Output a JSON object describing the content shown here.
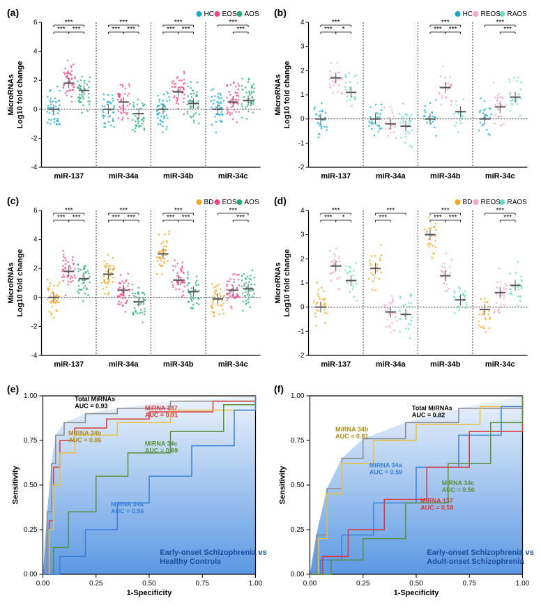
{
  "panels": {
    "a": {
      "label": "(a)",
      "yTitle": "MicroRNAs\nLog10 fold change",
      "yRange": [
        -4,
        6
      ],
      "yStep": 2,
      "categories": [
        "miR-137",
        "miR-34a",
        "miR-34b",
        "miR-34c"
      ],
      "legend": [
        {
          "label": "HC",
          "color": "#1ca9c9"
        },
        {
          "label": "EOS",
          "color": "#e94b8a"
        },
        {
          "label": "AOS",
          "color": "#2aa876"
        }
      ],
      "n": 110,
      "means": [
        [
          0.0,
          1.8,
          1.3
        ],
        [
          0.0,
          0.5,
          -0.3
        ],
        [
          0.0,
          1.2,
          0.4
        ],
        [
          0.0,
          0.5,
          0.6
        ]
      ],
      "spread": 1.4,
      "sig": [
        [
          "***",
          "***",
          "***"
        ],
        [
          "***",
          "***",
          "***"
        ],
        [
          "***",
          "***",
          "***"
        ],
        [
          "***",
          "",
          "***"
        ]
      ]
    },
    "b": {
      "label": "(b)",
      "yTitle": "MicroRNAs\nLog10 fold change",
      "yRange": [
        -2,
        4
      ],
      "yStep": 1,
      "categories": [
        "miR-137",
        "miR-34a",
        "miR-34b",
        "miR-34c"
      ],
      "legend": [
        {
          "label": "HC",
          "color": "#1ca9c9"
        },
        {
          "label": "REOS",
          "color": "#f3a6c5"
        },
        {
          "label": "RAOS",
          "color": "#6ed9c0"
        }
      ],
      "n": 60,
      "means": [
        [
          0.0,
          1.7,
          1.1
        ],
        [
          0.0,
          -0.2,
          -0.3
        ],
        [
          0.0,
          1.3,
          0.3
        ],
        [
          0.0,
          0.5,
          0.9
        ]
      ],
      "spread": 0.9,
      "sig": [
        [
          "***",
          "***",
          "*"
        ],
        [
          "",
          "",
          ""
        ],
        [
          "***",
          "***",
          "***"
        ],
        [
          "***",
          "",
          "***"
        ]
      ]
    },
    "c": {
      "label": "(c)",
      "yTitle": "MicroRNAs\nLog10 fold change",
      "yRange": [
        -4,
        6
      ],
      "yStep": 2,
      "categories": [
        "miR-137",
        "miR-34a",
        "miR-34b",
        "miR-34c"
      ],
      "legend": [
        {
          "label": "BD",
          "color": "#f5a623"
        },
        {
          "label": "EOS",
          "color": "#e94b8a"
        },
        {
          "label": "AOS",
          "color": "#2aa876"
        }
      ],
      "n": 110,
      "means": [
        [
          0.0,
          1.8,
          1.3
        ],
        [
          1.6,
          0.5,
          -0.3
        ],
        [
          3.0,
          1.2,
          0.4
        ],
        [
          -0.1,
          0.5,
          0.6
        ]
      ],
      "spread": 1.4,
      "sig": [
        [
          "***",
          "***",
          "***"
        ],
        [
          "***",
          "***",
          "***"
        ],
        [
          "***",
          "***",
          "***"
        ],
        [
          "***",
          "",
          "***"
        ]
      ]
    },
    "d": {
      "label": "(d)",
      "yTitle": "MicroRNAs\nLog10 fold change",
      "yRange": [
        -2,
        4
      ],
      "yStep": 1,
      "categories": [
        "miR-137",
        "miR-34a",
        "miR-34b",
        "miR-34c"
      ],
      "legend": [
        {
          "label": "BD",
          "color": "#f5a623"
        },
        {
          "label": "REOS",
          "color": "#f3a6c5"
        },
        {
          "label": "RAOS",
          "color": "#6ed9c0"
        }
      ],
      "n": 60,
      "means": [
        [
          0.0,
          1.7,
          1.1
        ],
        [
          1.6,
          -0.2,
          -0.3
        ],
        [
          3.0,
          1.3,
          0.3
        ],
        [
          -0.1,
          0.6,
          0.9
        ]
      ],
      "spread": 0.9,
      "sig": [
        [
          "***",
          "***",
          "*"
        ],
        [
          "***",
          "***",
          ""
        ],
        [
          "***",
          "***",
          "***"
        ],
        [
          "***",
          "",
          "***"
        ]
      ]
    },
    "e": {
      "label": "(e)",
      "xTitle": "1-Specificity",
      "yTitle": "Sensitivity",
      "title": "Early-onset Schizophrenia vs.\nHealthy Controls",
      "gradientTop": "#eaf2fb",
      "gradientBottom": "#4a8de0",
      "curves": [
        {
          "name": "Total MiRNAs",
          "auc": "0.93",
          "color": "#8a8a8a",
          "labelColor": "#000",
          "pos": [
            0.15,
            0.97
          ],
          "points": [
            [
              0,
              0
            ],
            [
              0.02,
              0.35
            ],
            [
              0.04,
              0.62
            ],
            [
              0.06,
              0.78
            ],
            [
              0.1,
              0.85
            ],
            [
              0.2,
              0.9
            ],
            [
              0.35,
              0.93
            ],
            [
              0.6,
              0.97
            ],
            [
              1,
              1
            ]
          ]
        },
        {
          "name": "MiRNA 137",
          "auc": "0.91",
          "color": "#d73a3a",
          "labelColor": "#d73a3a",
          "pos": [
            0.48,
            0.92
          ],
          "points": [
            [
              0,
              0
            ],
            [
              0.03,
              0.3
            ],
            [
              0.05,
              0.6
            ],
            [
              0.08,
              0.75
            ],
            [
              0.15,
              0.82
            ],
            [
              0.3,
              0.87
            ],
            [
              0.5,
              0.91
            ],
            [
              0.8,
              0.97
            ],
            [
              1,
              1
            ]
          ]
        },
        {
          "name": "MiRNA 34b",
          "auc": "0.86",
          "color": "#e8c040",
          "labelColor": "#b08a1a",
          "pos": [
            0.12,
            0.78
          ],
          "points": [
            [
              0,
              0
            ],
            [
              0.03,
              0.25
            ],
            [
              0.05,
              0.5
            ],
            [
              0.08,
              0.68
            ],
            [
              0.15,
              0.78
            ],
            [
              0.35,
              0.85
            ],
            [
              0.6,
              0.92
            ],
            [
              1,
              1
            ]
          ]
        },
        {
          "name": "MiRNA 34c",
          "auc": "0.69",
          "color": "#5a8f3a",
          "labelColor": "#5a8f3a",
          "pos": [
            0.48,
            0.72
          ],
          "points": [
            [
              0,
              0
            ],
            [
              0.05,
              0.15
            ],
            [
              0.12,
              0.35
            ],
            [
              0.25,
              0.55
            ],
            [
              0.4,
              0.68
            ],
            [
              0.6,
              0.8
            ],
            [
              0.85,
              0.95
            ],
            [
              1,
              1
            ]
          ]
        },
        {
          "name": "MiRNA 34a",
          "auc": "0.56",
          "color": "#3a7fd6",
          "labelColor": "#3a7fd6",
          "pos": [
            0.32,
            0.38
          ],
          "points": [
            [
              0,
              0
            ],
            [
              0.08,
              0.1
            ],
            [
              0.2,
              0.25
            ],
            [
              0.35,
              0.4
            ],
            [
              0.5,
              0.55
            ],
            [
              0.7,
              0.72
            ],
            [
              0.9,
              0.92
            ],
            [
              1,
              1
            ]
          ]
        }
      ]
    },
    "f": {
      "label": "(f)",
      "xTitle": "1-Specificity",
      "yTitle": "Sensitivity",
      "title": "Early-onset Schizophrenia vs.\nAdult-onset Schizophrenia",
      "gradientTop": "#eaf2fb",
      "gradientBottom": "#4a8de0",
      "curves": [
        {
          "name": "Total MiRNAs",
          "auc": "0.82",
          "color": "#8a8a8a",
          "labelColor": "#000",
          "pos": [
            0.48,
            0.92
          ],
          "points": [
            [
              0,
              0
            ],
            [
              0.03,
              0.22
            ],
            [
              0.08,
              0.48
            ],
            [
              0.15,
              0.65
            ],
            [
              0.25,
              0.76
            ],
            [
              0.45,
              0.85
            ],
            [
              0.7,
              0.93
            ],
            [
              1,
              1
            ]
          ]
        },
        {
          "name": "MiRNA 34b",
          "auc": "0.81",
          "color": "#e8c040",
          "labelColor": "#b08a1a",
          "pos": [
            0.12,
            0.8
          ],
          "points": [
            [
              0,
              0
            ],
            [
              0.04,
              0.2
            ],
            [
              0.08,
              0.45
            ],
            [
              0.15,
              0.62
            ],
            [
              0.3,
              0.75
            ],
            [
              0.5,
              0.84
            ],
            [
              0.8,
              0.94
            ],
            [
              1,
              1
            ]
          ]
        },
        {
          "name": "MiRNA 34a",
          "auc": "0.59",
          "color": "#3a7fd6",
          "labelColor": "#3a7fd6",
          "pos": [
            0.28,
            0.6
          ],
          "points": [
            [
              0,
              0
            ],
            [
              0.05,
              0.08
            ],
            [
              0.15,
              0.22
            ],
            [
              0.3,
              0.4
            ],
            [
              0.5,
              0.6
            ],
            [
              0.7,
              0.78
            ],
            [
              0.9,
              0.94
            ],
            [
              1,
              1
            ]
          ]
        },
        {
          "name": "MiRNA 137",
          "auc": "0.58",
          "color": "#d73a3a",
          "labelColor": "#d73a3a",
          "pos": [
            0.52,
            0.4
          ],
          "points": [
            [
              0,
              0
            ],
            [
              0.06,
              0.1
            ],
            [
              0.18,
              0.25
            ],
            [
              0.35,
              0.42
            ],
            [
              0.55,
              0.6
            ],
            [
              0.75,
              0.8
            ],
            [
              1,
              1
            ]
          ]
        },
        {
          "name": "MiRNA 34c",
          "auc": "0.50",
          "color": "#5a8f3a",
          "labelColor": "#5a8f3a",
          "pos": [
            0.62,
            0.5
          ],
          "points": [
            [
              0,
              0
            ],
            [
              0.1,
              0.08
            ],
            [
              0.25,
              0.2
            ],
            [
              0.45,
              0.4
            ],
            [
              0.65,
              0.62
            ],
            [
              0.85,
              0.85
            ],
            [
              1,
              1
            ]
          ]
        }
      ]
    }
  }
}
